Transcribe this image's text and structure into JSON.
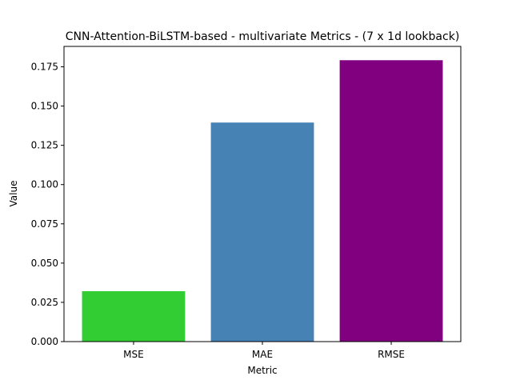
{
  "chart_data": {
    "type": "bar",
    "title": "CNN-Attention-BiLSTM-based - multivariate Metrics - (7 x 1d lookback)",
    "xlabel": "Metric",
    "ylabel": "Value",
    "categories": [
      "MSE",
      "MAE",
      "RMSE"
    ],
    "values": [
      0.0321,
      0.1395,
      0.1792
    ],
    "colors": [
      "#32cd32",
      "#4682b4",
      "#800080"
    ],
    "ylim": [
      0,
      0.188
    ],
    "yticks": [
      0.0,
      0.025,
      0.05,
      0.075,
      0.1,
      0.125,
      0.15,
      0.175
    ],
    "ytick_labels": [
      "0.000",
      "0.025",
      "0.050",
      "0.075",
      "0.100",
      "0.125",
      "0.150",
      "0.175"
    ],
    "grid": false,
    "legend": false
  }
}
